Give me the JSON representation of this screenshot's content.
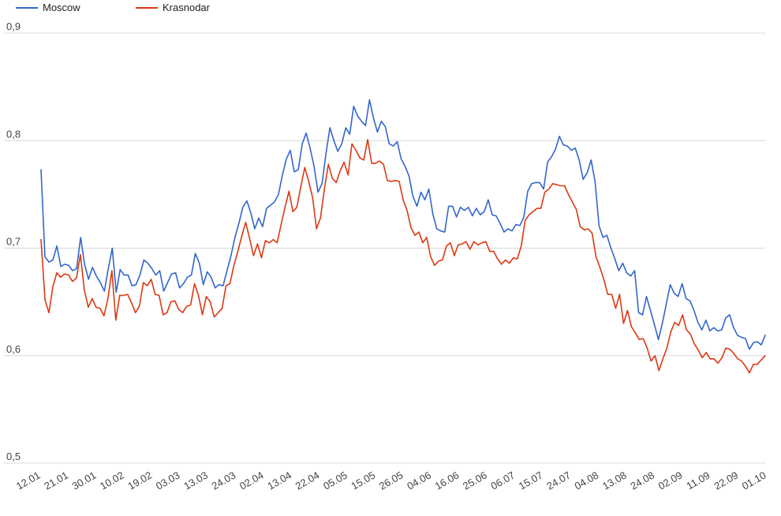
{
  "chart_data": {
    "type": "line",
    "title": "",
    "xlabel": "",
    "ylabel": "",
    "ylim": [
      0.5,
      0.9
    ],
    "yticks": [
      "0,5",
      "0,6",
      "0,7",
      "0,8",
      "0,9"
    ],
    "ytick_values": [
      0.5,
      0.6,
      0.7,
      0.8,
      0.9
    ],
    "x_tick_labels": [
      "12.01",
      "21.01",
      "30.01",
      "10.02",
      "19.02",
      "03.03",
      "13.03",
      "24.03",
      "02.04",
      "13.04",
      "22.04",
      "05.05",
      "15.05",
      "26.05",
      "04.06",
      "16.06",
      "25.06",
      "06.07",
      "15.07",
      "24.07",
      "04.08",
      "13.08",
      "24.08",
      "02.09",
      "11.09",
      "22.09",
      "01.10"
    ],
    "grid": true,
    "legend": "top-left",
    "series": [
      {
        "name": "Moscow",
        "color": "#3366cc",
        "values": [
          0.773,
          0.692,
          0.687,
          0.689,
          0.702,
          0.683,
          0.685,
          0.684,
          0.679,
          0.681,
          0.71,
          0.685,
          0.671,
          0.682,
          0.674,
          0.668,
          0.66,
          0.681,
          0.7,
          0.659,
          0.68,
          0.675,
          0.675,
          0.665,
          0.666,
          0.675,
          0.689,
          0.686,
          0.681,
          0.675,
          0.679,
          0.66,
          0.668,
          0.676,
          0.677,
          0.663,
          0.667,
          0.673,
          0.675,
          0.695,
          0.686,
          0.666,
          0.678,
          0.673,
          0.663,
          0.666,
          0.665,
          0.679,
          0.693,
          0.71,
          0.723,
          0.738,
          0.744,
          0.733,
          0.718,
          0.728,
          0.72,
          0.737,
          0.74,
          0.743,
          0.75,
          0.768,
          0.783,
          0.791,
          0.771,
          0.773,
          0.797,
          0.807,
          0.793,
          0.776,
          0.752,
          0.76,
          0.788,
          0.812,
          0.8,
          0.79,
          0.797,
          0.812,
          0.806,
          0.832,
          0.823,
          0.818,
          0.814,
          0.838,
          0.821,
          0.808,
          0.818,
          0.813,
          0.797,
          0.795,
          0.799,
          0.783,
          0.776,
          0.767,
          0.748,
          0.739,
          0.752,
          0.745,
          0.755,
          0.732,
          0.718,
          0.716,
          0.715,
          0.739,
          0.739,
          0.729,
          0.738,
          0.735,
          0.738,
          0.73,
          0.737,
          0.731,
          0.734,
          0.745,
          0.731,
          0.73,
          0.723,
          0.715,
          0.718,
          0.716,
          0.722,
          0.721,
          0.729,
          0.753,
          0.76,
          0.761,
          0.761,
          0.755,
          0.78,
          0.785,
          0.792,
          0.804,
          0.796,
          0.795,
          0.791,
          0.793,
          0.782,
          0.764,
          0.77,
          0.782,
          0.762,
          0.721,
          0.71,
          0.712,
          0.7,
          0.69,
          0.679,
          0.686,
          0.677,
          0.674,
          0.679,
          0.64,
          0.638,
          0.655,
          0.642,
          0.629,
          0.615,
          0.63,
          0.648,
          0.666,
          0.658,
          0.655,
          0.667,
          0.653,
          0.651,
          0.642,
          0.631,
          0.624,
          0.633,
          0.623,
          0.626,
          0.623,
          0.624,
          0.635,
          0.638,
          0.626,
          0.619,
          0.617,
          0.616,
          0.606,
          0.612,
          0.613,
          0.61,
          0.619
        ]
      },
      {
        "name": "Krasnodar",
        "color": "#dc3912",
        "values": [
          0.708,
          0.652,
          0.64,
          0.664,
          0.677,
          0.673,
          0.676,
          0.675,
          0.669,
          0.672,
          0.694,
          0.661,
          0.645,
          0.653,
          0.645,
          0.644,
          0.637,
          0.653,
          0.679,
          0.633,
          0.656,
          0.656,
          0.657,
          0.649,
          0.64,
          0.646,
          0.668,
          0.665,
          0.671,
          0.657,
          0.656,
          0.638,
          0.64,
          0.65,
          0.651,
          0.643,
          0.64,
          0.646,
          0.647,
          0.667,
          0.656,
          0.638,
          0.655,
          0.65,
          0.636,
          0.64,
          0.644,
          0.665,
          0.667,
          0.684,
          0.697,
          0.711,
          0.724,
          0.709,
          0.693,
          0.704,
          0.691,
          0.707,
          0.705,
          0.708,
          0.705,
          0.722,
          0.738,
          0.753,
          0.734,
          0.738,
          0.757,
          0.775,
          0.762,
          0.747,
          0.718,
          0.728,
          0.755,
          0.778,
          0.765,
          0.761,
          0.772,
          0.78,
          0.768,
          0.797,
          0.791,
          0.784,
          0.782,
          0.801,
          0.779,
          0.779,
          0.781,
          0.778,
          0.763,
          0.762,
          0.763,
          0.762,
          0.745,
          0.735,
          0.719,
          0.712,
          0.715,
          0.705,
          0.71,
          0.692,
          0.684,
          0.688,
          0.689,
          0.702,
          0.705,
          0.693,
          0.703,
          0.704,
          0.706,
          0.699,
          0.706,
          0.703,
          0.705,
          0.706,
          0.697,
          0.697,
          0.69,
          0.685,
          0.689,
          0.686,
          0.691,
          0.69,
          0.702,
          0.726,
          0.731,
          0.734,
          0.737,
          0.737,
          0.752,
          0.755,
          0.76,
          0.759,
          0.758,
          0.758,
          0.75,
          0.743,
          0.736,
          0.72,
          0.717,
          0.718,
          0.714,
          0.692,
          0.682,
          0.671,
          0.657,
          0.657,
          0.644,
          0.657,
          0.63,
          0.642,
          0.627,
          0.621,
          0.615,
          0.616,
          0.607,
          0.595,
          0.6,
          0.586,
          0.597,
          0.607,
          0.622,
          0.631,
          0.628,
          0.638,
          0.624,
          0.62,
          0.611,
          0.605,
          0.598,
          0.603,
          0.597,
          0.597,
          0.593,
          0.598,
          0.607,
          0.606,
          0.602,
          0.597,
          0.595,
          0.59,
          0.584,
          0.592,
          0.592,
          0.596,
          0.6
        ]
      }
    ]
  }
}
